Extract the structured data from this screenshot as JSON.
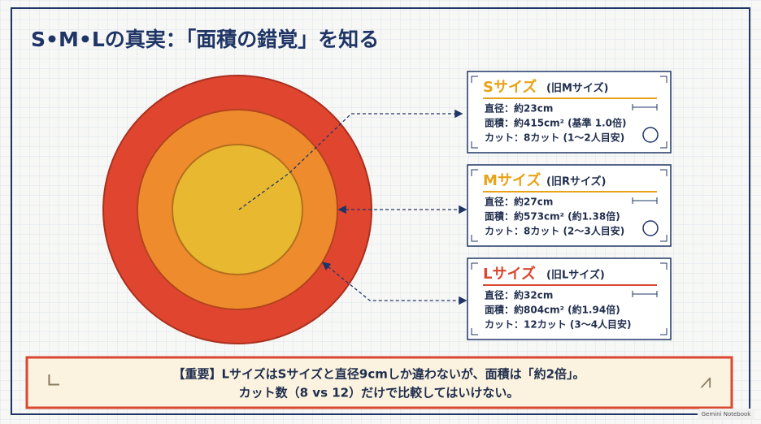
{
  "title": "S•M•Lの真実：「面積の錯覚」を知る",
  "sizes": [
    {
      "name": "Sサイズ",
      "old_name": "(旧Mサイズ)",
      "diameter": "直径：約23cm",
      "area": "面積：約415cm² (基準 1.0倍)",
      "cut": "カット：8カット (1〜2人目安)"
    },
    {
      "name": "Mサイズ",
      "old_name": "(旧Rサイズ)",
      "diameter": "直径：約27cm",
      "area": "面積：約573cm² (約1.38倍)",
      "cut": "カット：8カット (2〜3人目安)"
    },
    {
      "name": "Lサイズ",
      "old_name": "(旧Lサイズ)",
      "diameter": "直径：約32cm",
      "area": "面積：約804cm² (約1.94倍)",
      "cut": "カット：12カット (3〜4人目安)"
    }
  ],
  "banner": {
    "line1": "【重要】LサイズはSサイズと直径9cmしか違わないが、面積は「約2倍」。",
    "line2": "カット数（8 vs 12）だけで比較してはいけない。"
  },
  "watermark": "Gemini Notebook"
}
